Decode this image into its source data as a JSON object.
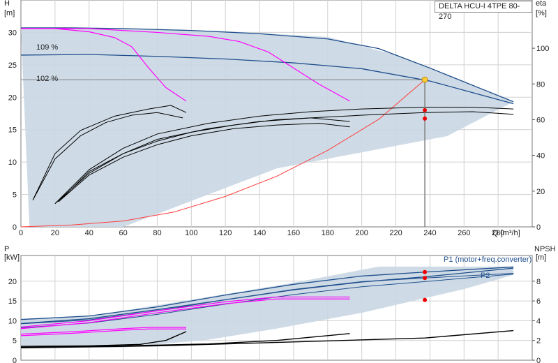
{
  "title": "DELTA HCU-I 4TPE 80-270",
  "colors": {
    "envelope": "#c9d7e3",
    "head_curve": "#1f4e8c",
    "power_curve": "#1f4e8c",
    "limit_curve": "#ff00ff",
    "system_curve": "#ff3b3b",
    "eff_curve": "#000000",
    "duty_line": "#808080",
    "duty_point": "#ffcc33",
    "marker": "#ee0000",
    "grid": "#d0d0d0"
  },
  "chart_data": [
    {
      "type": "line",
      "panel": "head",
      "ylabel_left": "H",
      "yunit_left": "[m]",
      "ylabel_right": "eta",
      "yunit_right": "[%]",
      "xlabel": "Q [m³/h]",
      "xlim": [
        0,
        300
      ],
      "ylim_left": [
        0,
        35
      ],
      "ylim_right": [
        0,
        127
      ],
      "x_ticks": [
        0,
        20,
        40,
        60,
        80,
        100,
        120,
        140,
        160,
        180,
        200,
        220,
        240,
        260,
        280
      ],
      "y_ticks_left": [
        0,
        5,
        10,
        15,
        20,
        25,
        30
      ],
      "y_ticks_right": [
        0,
        20,
        40,
        60,
        80,
        100
      ],
      "annotations": [
        "109 %",
        "102 %"
      ],
      "envelope": {
        "upper": [
          [
            0,
            30.7
          ],
          [
            60,
            30.6
          ],
          [
            120,
            30.2
          ],
          [
            180,
            29.3
          ],
          [
            220,
            26.5
          ],
          [
            289,
            19.3
          ]
        ],
        "lower": [
          [
            289,
            19.3
          ],
          [
            250,
            14
          ],
          [
            200,
            11.5
          ],
          [
            150,
            9
          ],
          [
            100,
            4
          ],
          [
            60,
            0
          ],
          [
            5,
            0
          ]
        ]
      },
      "series": [
        {
          "kind": "head",
          "points": [
            [
              0,
              30.7
            ],
            [
              30,
              30.7
            ],
            [
              60,
              30.6
            ],
            [
              100,
              30.3
            ],
            [
              140,
              29.8
            ],
            [
              180,
              29.0
            ],
            [
              210,
              27.5
            ],
            [
              240,
              24.5
            ],
            [
              289,
              19.3
            ]
          ]
        },
        {
          "kind": "head",
          "points": [
            [
              0,
              26.5
            ],
            [
              40,
              26.6
            ],
            [
              80,
              26.3
            ],
            [
              120,
              25.9
            ],
            [
              160,
              25.3
            ],
            [
              200,
              24.4
            ],
            [
              240,
              22.5
            ],
            [
              289,
              19.0
            ]
          ]
        },
        {
          "kind": "limit",
          "points": [
            [
              0,
              30.6
            ],
            [
              20,
              30.6
            ],
            [
              40,
              30.1
            ],
            [
              55,
              29.2
            ],
            [
              65,
              27.8
            ],
            [
              75,
              24.5
            ],
            [
              85,
              21.5
            ],
            [
              97,
              19.4
            ]
          ]
        },
        {
          "kind": "limit",
          "points": [
            [
              0,
              30.6
            ],
            [
              40,
              30.6
            ],
            [
              80,
              30.0
            ],
            [
              110,
              29.4
            ],
            [
              128,
              28.6
            ],
            [
              145,
              27.0
            ],
            [
              160,
              24.5
            ],
            [
              175,
              22
            ],
            [
              193,
              19.4
            ]
          ]
        },
        {
          "kind": "system",
          "points": [
            [
              0,
              0
            ],
            [
              30,
              0.3
            ],
            [
              60,
              0.9
            ],
            [
              90,
              2.3
            ],
            [
              120,
              4.7
            ],
            [
              150,
              7.8
            ],
            [
              180,
              11.8
            ],
            [
              210,
              16.6
            ],
            [
              237,
              22.7
            ]
          ]
        },
        {
          "kind": "efficiency",
          "points": [
            [
              7,
              15
            ],
            [
              20,
              38
            ],
            [
              35,
              51
            ],
            [
              50,
              58.5
            ],
            [
              65,
              62.5
            ],
            [
              80,
              64
            ],
            [
              95,
              61
            ]
          ]
        },
        {
          "kind": "efficiency",
          "points": [
            [
              7,
              15
            ],
            [
              20,
              41
            ],
            [
              35,
              54
            ],
            [
              55,
              62
            ],
            [
              75,
              66
            ],
            [
              88,
              68
            ],
            [
              97,
              64
            ]
          ]
        },
        {
          "kind": "efficiency",
          "points": [
            [
              22,
              14
            ],
            [
              40,
              29
            ],
            [
              60,
              39
            ],
            [
              80,
              46
            ],
            [
              100,
              51
            ],
            [
              125,
              55
            ],
            [
              150,
              57
            ],
            [
              175,
              58
            ],
            [
              193,
              56
            ]
          ]
        },
        {
          "kind": "efficiency",
          "points": [
            [
              22,
              14
            ],
            [
              40,
              31
            ],
            [
              60,
              41
            ],
            [
              80,
              48
            ],
            [
              100,
              53
            ],
            [
              125,
              57
            ],
            [
              150,
              60
            ],
            [
              170,
              61
            ],
            [
              193,
              59
            ]
          ]
        },
        {
          "kind": "efficiency",
          "points": [
            [
              20,
              13
            ],
            [
              40,
              30
            ],
            [
              60,
              41
            ],
            [
              80,
              49
            ],
            [
              110,
              55
            ],
            [
              140,
              59
            ],
            [
              170,
              61
            ],
            [
              200,
              62.5
            ],
            [
              237,
              64
            ],
            [
              265,
              64.5
            ],
            [
              289,
              63
            ]
          ]
        },
        {
          "kind": "efficiency",
          "points": [
            [
              20,
              13
            ],
            [
              40,
              32
            ],
            [
              60,
              44
            ],
            [
              80,
              52
            ],
            [
              110,
              58
            ],
            [
              140,
              62
            ],
            [
              170,
              64.5
            ],
            [
              200,
              66
            ],
            [
              237,
              67
            ],
            [
              265,
              67
            ],
            [
              289,
              66
            ]
          ]
        }
      ],
      "duty_point": {
        "x": 237,
        "y": 22.7
      },
      "markers": [
        [
          237,
          18
        ],
        [
          237,
          16.7
        ]
      ]
    },
    {
      "type": "line",
      "panel": "power",
      "ylabel_left": "P",
      "yunit_left": "[kW]",
      "ylabel_right": "NPSH",
      "yunit_right": "[m]",
      "xlim": [
        0,
        300
      ],
      "ylim_left": [
        0,
        26.5
      ],
      "ylim_right": [
        0,
        10.6
      ],
      "y_ticks_left": [
        0,
        5,
        10,
        15,
        20
      ],
      "y_ticks_right": [
        0,
        2,
        4,
        6,
        8
      ],
      "legend": [
        "P1 (motor+freq.converter)",
        "P2"
      ],
      "envelope": {
        "upper": [
          [
            0,
            10.5
          ],
          [
            40,
            11.2
          ],
          [
            100,
            15.3
          ],
          [
            160,
            19.6
          ],
          [
            210,
            23.7
          ],
          [
            289,
            23.7
          ]
        ],
        "lower": [
          [
            289,
            21.6
          ],
          [
            260,
            18
          ],
          [
            230,
            15
          ],
          [
            200,
            12
          ],
          [
            150,
            8
          ],
          [
            110,
            5.2
          ],
          [
            60,
            3.2
          ],
          [
            0,
            3.2
          ]
        ]
      },
      "series": [
        {
          "kind": "p1",
          "points": [
            [
              0,
              10.3
            ],
            [
              40,
              11.2
            ],
            [
              80,
              13.5
            ],
            [
              120,
              16.5
            ],
            [
              160,
              19.2
            ],
            [
              200,
              21.3
            ],
            [
              237,
              22.3
            ],
            [
              289,
              23.6
            ]
          ]
        },
        {
          "kind": "p2",
          "points": [
            [
              0,
              9.2
            ],
            [
              40,
              10.2
            ],
            [
              80,
              12.5
            ],
            [
              120,
              15.3
            ],
            [
              160,
              17.9
            ],
            [
              200,
              19.9
            ],
            [
              237,
              20.8
            ],
            [
              289,
              22.0
            ]
          ]
        },
        {
          "kind": "p1",
          "points": [
            [
              0,
              9.3
            ],
            [
              40,
              10.5
            ],
            [
              80,
              12.8
            ],
            [
              120,
              15.3
            ],
            [
              160,
              17.8
            ],
            [
              200,
              19.8
            ],
            [
              237,
              21.1
            ],
            [
              289,
              23.3
            ]
          ]
        },
        {
          "kind": "p2",
          "points": [
            [
              0,
              8.2
            ],
            [
              40,
              9.4
            ],
            [
              80,
              11.6
            ],
            [
              120,
              14.2
            ],
            [
              160,
              16.6
            ],
            [
              200,
              18.6
            ],
            [
              237,
              19.9
            ],
            [
              289,
              21.8
            ]
          ]
        },
        {
          "kind": "limit",
          "points": [
            [
              0,
              8.4
            ],
            [
              40,
              10
            ],
            [
              80,
              12.5
            ],
            [
              120,
              14.8
            ],
            [
              150,
              16.0
            ],
            [
              193,
              16.0
            ]
          ]
        },
        {
          "kind": "limit",
          "points": [
            [
              0,
              8.0
            ],
            [
              40,
              9.5
            ],
            [
              80,
              12
            ],
            [
              120,
              14.3
            ],
            [
              150,
              15.5
            ],
            [
              193,
              15.5
            ]
          ]
        },
        {
          "kind": "limit",
          "points": [
            [
              0,
              6.6
            ],
            [
              30,
              7.2
            ],
            [
              60,
              8.0
            ],
            [
              75,
              8.3
            ],
            [
              97,
              8.3
            ]
          ]
        },
        {
          "kind": "limit",
          "points": [
            [
              0,
              6.2
            ],
            [
              30,
              6.8
            ],
            [
              60,
              7.6
            ],
            [
              75,
              7.9
            ],
            [
              97,
              7.9
            ]
          ]
        },
        {
          "kind": "npsh",
          "points": [
            [
              0,
              1.4
            ],
            [
              40,
              1.45
            ],
            [
              70,
              1.6
            ],
            [
              85,
              2.0
            ],
            [
              97,
              2.9
            ]
          ]
        },
        {
          "kind": "npsh",
          "points": [
            [
              0,
              1.3
            ],
            [
              60,
              1.45
            ],
            [
              110,
              1.65
            ],
            [
              150,
              2.0
            ],
            [
              193,
              2.7
            ]
          ]
        },
        {
          "kind": "npsh",
          "points": [
            [
              0,
              1.25
            ],
            [
              80,
              1.45
            ],
            [
              160,
              1.85
            ],
            [
              237,
              2.25
            ],
            [
              289,
              3.0
            ]
          ]
        }
      ],
      "markers": [
        [
          237,
          22.3
        ],
        [
          237,
          20.8
        ],
        [
          237,
          6.1
        ]
      ]
    }
  ]
}
